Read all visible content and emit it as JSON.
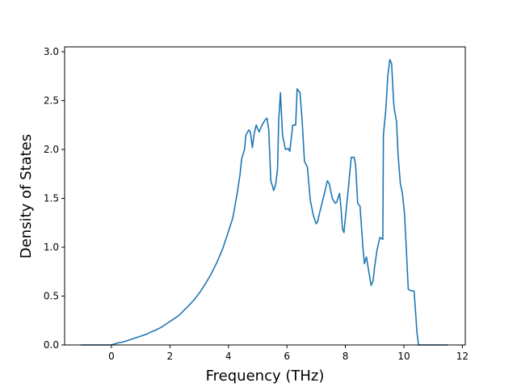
{
  "chart_data": {
    "type": "line",
    "title": "",
    "xlabel": "Frequency (THz)",
    "ylabel": "Density of States",
    "xlim": [
      -1.6,
      12.1
    ],
    "ylim": [
      0.0,
      3.05
    ],
    "grid": false,
    "x_ticks": [
      0,
      2,
      4,
      6,
      8,
      10,
      12
    ],
    "x_tick_labels": [
      "0",
      "2",
      "4",
      "6",
      "8",
      "10",
      "12"
    ],
    "y_ticks": [
      0.0,
      0.5,
      1.0,
      1.5,
      2.0,
      2.5,
      3.0
    ],
    "y_tick_labels": [
      "0.0",
      "0.5",
      "1.0",
      "1.5",
      "2.0",
      "2.5",
      "3.0"
    ],
    "colors": {
      "series": "#1f77b4",
      "axis": "#000000",
      "background": "#ffffff"
    },
    "series": [
      {
        "x": [
          -1.05,
          -0.5,
          0.0,
          0.2,
          0.4,
          0.6,
          0.8,
          1.0,
          1.2,
          1.4,
          1.5,
          1.7,
          1.9,
          2.1,
          2.3,
          2.5,
          2.7,
          2.85,
          2.95,
          3.05,
          3.2,
          3.4,
          3.6,
          3.8,
          4.0,
          4.15,
          4.3,
          4.4,
          4.45,
          4.55,
          4.6,
          4.7,
          4.75,
          4.82,
          4.88,
          4.95,
          5.05,
          5.15,
          5.25,
          5.32,
          5.38,
          5.45,
          5.55,
          5.62,
          5.68,
          5.72,
          5.78,
          5.85,
          5.95,
          6.05,
          6.1,
          6.2,
          6.3,
          6.35,
          6.45,
          6.52,
          6.6,
          6.7,
          6.8,
          6.9,
          7.0,
          7.05,
          7.1,
          7.2,
          7.3,
          7.38,
          7.45,
          7.55,
          7.65,
          7.7,
          7.8,
          7.85,
          7.9,
          7.95,
          8.0,
          8.1,
          8.2,
          8.3,
          8.35,
          8.42,
          8.5,
          8.6,
          8.65,
          8.72,
          8.8,
          8.88,
          8.95,
          9.0,
          9.08,
          9.18,
          9.28,
          9.3,
          9.38,
          9.45,
          9.52,
          9.58,
          9.65,
          9.68,
          9.75,
          9.8,
          9.88,
          9.95,
          10.02,
          10.08,
          10.15,
          10.2,
          10.35,
          10.45,
          10.5,
          10.55,
          11.5
        ],
        "y": [
          0.0,
          0.0,
          0.0,
          0.02,
          0.03,
          0.05,
          0.07,
          0.09,
          0.11,
          0.14,
          0.15,
          0.18,
          0.22,
          0.26,
          0.3,
          0.36,
          0.42,
          0.47,
          0.51,
          0.55,
          0.62,
          0.72,
          0.84,
          0.98,
          1.16,
          1.3,
          1.55,
          1.75,
          1.9,
          2.0,
          2.15,
          2.2,
          2.18,
          2.02,
          2.16,
          2.25,
          2.18,
          2.25,
          2.3,
          2.32,
          2.2,
          1.68,
          1.58,
          1.65,
          1.8,
          2.3,
          2.58,
          2.15,
          2.0,
          2.01,
          1.98,
          2.25,
          2.25,
          2.62,
          2.58,
          2.3,
          1.88,
          1.82,
          1.48,
          1.33,
          1.24,
          1.26,
          1.33,
          1.45,
          1.57,
          1.68,
          1.65,
          1.5,
          1.45,
          1.46,
          1.55,
          1.4,
          1.19,
          1.15,
          1.3,
          1.6,
          1.92,
          1.92,
          1.84,
          1.45,
          1.42,
          1.0,
          0.83,
          0.9,
          0.75,
          0.61,
          0.66,
          0.8,
          0.97,
          1.1,
          1.08,
          2.15,
          2.4,
          2.75,
          2.92,
          2.88,
          2.48,
          2.4,
          2.28,
          1.95,
          1.65,
          1.55,
          1.35,
          1.0,
          0.57,
          0.56,
          0.55,
          0.12,
          0.0,
          0.0,
          0.0
        ]
      }
    ]
  }
}
